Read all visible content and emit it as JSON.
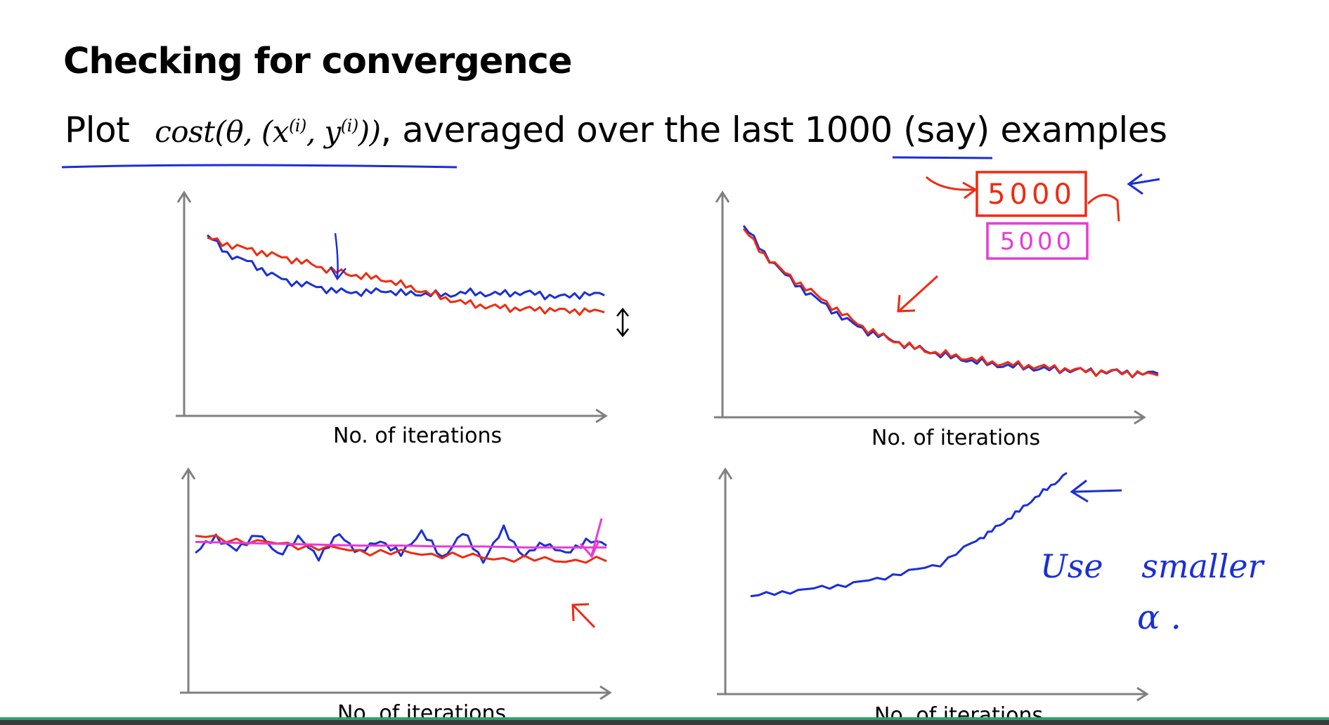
{
  "slide": {
    "title": "Checking for convergence",
    "subtitle_prefix": "Plot",
    "subtitle_math_main": "cost(θ, (x",
    "subtitle_math_sup1": "(i)",
    "subtitle_math_mid": ", y",
    "subtitle_math_sup2": "(i)",
    "subtitle_math_end": "))",
    "subtitle_rest_a": ", averaged over the last ",
    "subtitle_highlight": "1000",
    "subtitle_rest_b": " (say) examples"
  },
  "annotations": {
    "box1": "5000",
    "box2": "5000",
    "note_line1": "Use smaller",
    "note_line2": "α ."
  },
  "colors": {
    "axis": "#808080",
    "blue": "#1a2fd6",
    "red": "#f02a10",
    "magenta": "#e83ad8",
    "underline": "#1a2fd6",
    "text": "#000000"
  },
  "chart_data": [
    {
      "type": "line",
      "xlabel": "No. of iterations",
      "ylabel": "",
      "xlim": [
        0,
        100
      ],
      "ylim": [
        0,
        100
      ],
      "series": [
        {
          "color": "blue",
          "x": [
            0,
            5,
            10,
            15,
            20,
            25,
            30,
            35,
            40,
            45,
            50,
            55,
            60,
            65,
            70,
            75,
            80,
            85,
            90,
            95,
            100
          ],
          "y": [
            82,
            70,
            65,
            58,
            52,
            50,
            47,
            45,
            45,
            46,
            44,
            44,
            43,
            45,
            44,
            44,
            45,
            43,
            42,
            44,
            43
          ]
        },
        {
          "color": "red",
          "x": [
            0,
            5,
            10,
            15,
            20,
            25,
            30,
            35,
            40,
            45,
            50,
            55,
            60,
            65,
            70,
            75,
            80,
            85,
            90,
            95,
            100
          ],
          "y": [
            80,
            76,
            73,
            70,
            67,
            64,
            60,
            57,
            55,
            53,
            49,
            45,
            41,
            38,
            36,
            35,
            34,
            34,
            33,
            33,
            32
          ]
        }
      ],
      "annotations": [
        "down-arrow",
        "up-down-arrow"
      ]
    },
    {
      "type": "line",
      "xlabel": "No. of iterations",
      "ylabel": "",
      "xlim": [
        0,
        100
      ],
      "ylim": [
        0,
        100
      ],
      "series": [
        {
          "color": "blue",
          "x": [
            0,
            5,
            10,
            15,
            20,
            25,
            30,
            35,
            40,
            45,
            50,
            55,
            60,
            65,
            70,
            75,
            80,
            85,
            90,
            95,
            100
          ],
          "y": [
            88,
            73,
            61,
            52,
            44,
            36,
            30,
            26,
            22,
            19,
            16,
            14,
            12,
            11,
            10,
            9,
            9,
            8,
            8,
            7,
            7
          ]
        },
        {
          "color": "red",
          "x": [
            0,
            5,
            10,
            15,
            20,
            25,
            30,
            35,
            40,
            45,
            50,
            55,
            60,
            65,
            70,
            75,
            80,
            85,
            90,
            95,
            100
          ],
          "y": [
            86,
            72,
            62,
            54,
            46,
            38,
            31,
            26,
            22,
            19,
            17,
            15,
            13,
            12,
            11,
            10,
            9,
            8,
            8,
            7,
            6
          ]
        }
      ],
      "annotations": [
        "red-arrow",
        "box-5000-red",
        "box-5000-magenta"
      ]
    },
    {
      "type": "line",
      "xlabel": "No. of iterations",
      "ylabel": "",
      "xlim": [
        0,
        100
      ],
      "ylim": [
        0,
        100
      ],
      "series": [
        {
          "color": "blue",
          "x": [
            0,
            5,
            10,
            15,
            20,
            25,
            30,
            35,
            40,
            45,
            50,
            55,
            60,
            65,
            70,
            75,
            80,
            85,
            90,
            95,
            100
          ],
          "y": [
            60,
            78,
            62,
            82,
            58,
            76,
            56,
            80,
            60,
            74,
            58,
            84,
            54,
            82,
            52,
            86,
            56,
            72,
            58,
            74,
            68
          ]
        },
        {
          "color": "red",
          "x": [
            0,
            10,
            20,
            30,
            40,
            50,
            60,
            70,
            80,
            90,
            100
          ],
          "y": [
            78,
            74,
            70,
            66,
            62,
            60,
            58,
            55,
            53,
            52,
            51
          ]
        },
        {
          "color": "magenta",
          "x": [
            0,
            10,
            20,
            30,
            40,
            50,
            60,
            70,
            80,
            90,
            100
          ],
          "y": [
            72,
            71,
            70,
            69,
            68,
            68,
            67,
            67,
            66,
            66,
            66
          ]
        }
      ],
      "annotations": [
        "magenta-arrow",
        "red-arrow"
      ]
    },
    {
      "type": "line",
      "xlabel": "No. of iterations",
      "ylabel": "",
      "xlim": [
        0,
        100
      ],
      "ylim": [
        0,
        100
      ],
      "series": [
        {
          "color": "blue",
          "x": [
            0,
            10,
            20,
            30,
            40,
            50,
            60,
            70,
            75,
            80,
            85,
            90,
            95,
            100
          ],
          "y": [
            32,
            34,
            36,
            38,
            41,
            45,
            49,
            60,
            65,
            71,
            77,
            84,
            90,
            97
          ]
        }
      ],
      "annotations": [
        "arrow",
        "note"
      ]
    }
  ]
}
